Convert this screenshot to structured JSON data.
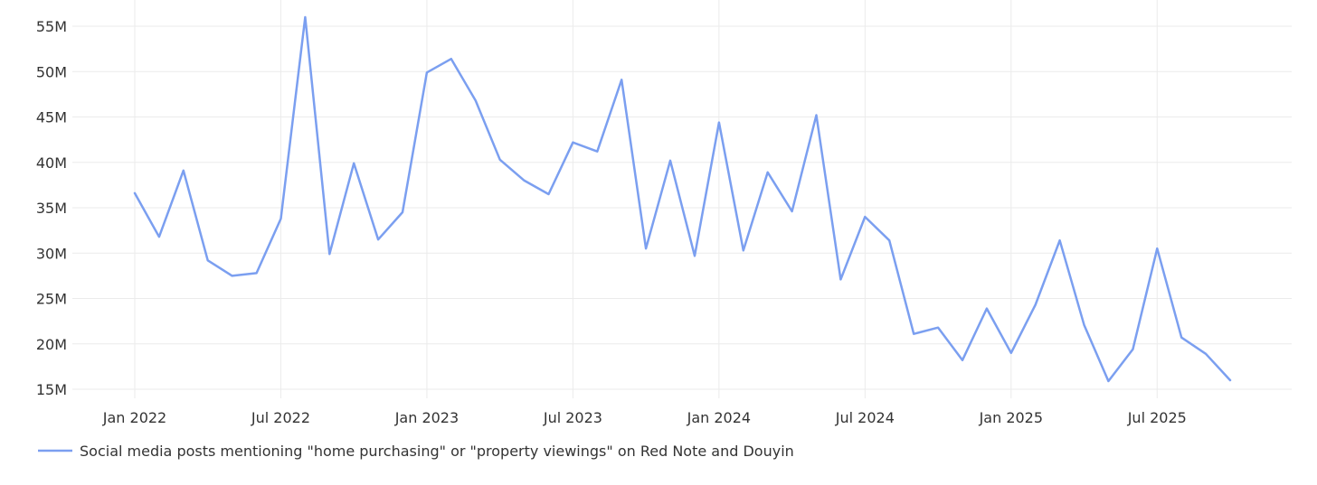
{
  "chart_data": {
    "type": "line",
    "title": "",
    "xlabel": "",
    "ylabel": "",
    "x": [
      "2022-01",
      "2022-02",
      "2022-03",
      "2022-04",
      "2022-05",
      "2022-06",
      "2022-07",
      "2022-08",
      "2022-09",
      "2022-10",
      "2022-11",
      "2022-12",
      "2023-01",
      "2023-02",
      "2023-03",
      "2023-04",
      "2023-05",
      "2023-06",
      "2023-07",
      "2023-08",
      "2023-09",
      "2023-10",
      "2023-11",
      "2023-12",
      "2024-01",
      "2024-02",
      "2024-03",
      "2024-04",
      "2024-05",
      "2024-06",
      "2024-07",
      "2024-08",
      "2024-09",
      "2024-10",
      "2024-11",
      "2024-12",
      "2025-01",
      "2025-02",
      "2025-03",
      "2025-04",
      "2025-05",
      "2025-06",
      "2025-07",
      "2025-08",
      "2025-09",
      "2025-10"
    ],
    "series": [
      {
        "name": "Social media posts mentioning \"home purchasing\" or \"property viewings\" on Red Note and Douyin",
        "color": "#7b9ff0",
        "values": [
          36.6,
          31.8,
          39.1,
          29.2,
          27.5,
          27.8,
          33.8,
          56.0,
          29.9,
          39.9,
          31.5,
          34.5,
          49.9,
          51.4,
          46.8,
          40.3,
          38.0,
          36.5,
          42.2,
          41.2,
          49.1,
          30.5,
          40.2,
          29.7,
          44.4,
          30.3,
          38.9,
          34.6,
          45.2,
          27.1,
          34.0,
          31.4,
          21.1,
          21.8,
          18.2,
          23.9,
          19.0,
          24.3,
          31.4,
          22.1,
          15.9,
          19.4,
          30.5,
          20.7,
          18.9,
          16.0
        ]
      }
    ],
    "ylim": [
      15,
      56
    ],
    "y_ticks": [
      15,
      20,
      25,
      30,
      35,
      40,
      45,
      50,
      55
    ],
    "y_tick_labels": [
      "15M",
      "20M",
      "25M",
      "30M",
      "35M",
      "40M",
      "45M",
      "50M",
      "55M"
    ],
    "x_ticks": [
      "2022-01",
      "2022-07",
      "2023-01",
      "2023-07",
      "2024-01",
      "2024-07",
      "2025-01",
      "2025-07"
    ],
    "x_tick_labels": [
      "Jan 2022",
      "Jul 2022",
      "Jan 2023",
      "Jul 2023",
      "Jan 2024",
      "Jul 2024",
      "Jan 2025",
      "Jul 2025"
    ],
    "grid": true,
    "legend_position": "bottom-left"
  }
}
